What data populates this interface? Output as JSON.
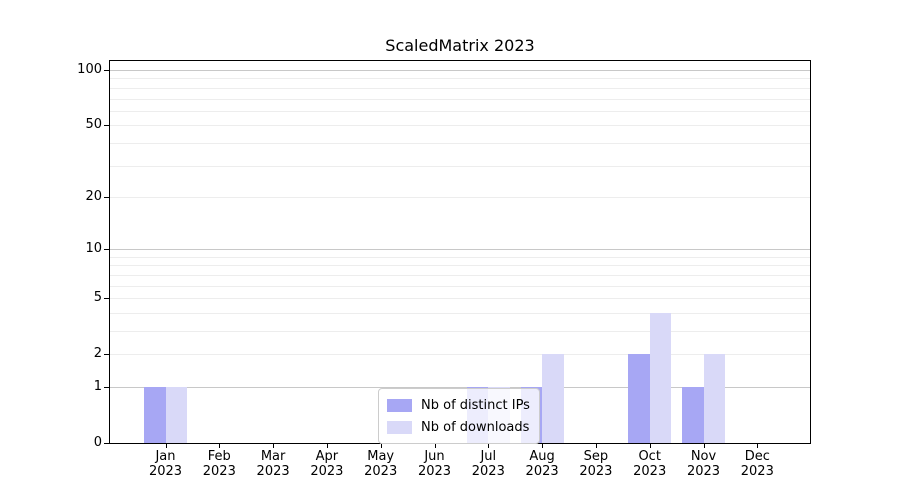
{
  "title": "ScaledMatrix 2023",
  "chart_data": {
    "type": "bar",
    "title": "ScaledMatrix 2023",
    "categories": [
      {
        "month": "Jan",
        "year": "2023"
      },
      {
        "month": "Feb",
        "year": "2023"
      },
      {
        "month": "Mar",
        "year": "2023"
      },
      {
        "month": "Apr",
        "year": "2023"
      },
      {
        "month": "May",
        "year": "2023"
      },
      {
        "month": "Jun",
        "year": "2023"
      },
      {
        "month": "Jul",
        "year": "2023"
      },
      {
        "month": "Aug",
        "year": "2023"
      },
      {
        "month": "Sep",
        "year": "2023"
      },
      {
        "month": "Oct",
        "year": "2023"
      },
      {
        "month": "Nov",
        "year": "2023"
      },
      {
        "month": "Dec",
        "year": "2023"
      }
    ],
    "series": [
      {
        "name": "Nb of distinct IPs",
        "color": "#a7a7f4",
        "values": [
          1,
          0,
          0,
          0,
          0,
          0,
          1,
          1,
          0,
          2,
          1,
          0
        ]
      },
      {
        "name": "Nb of downloads",
        "color": "#d9d9f8",
        "values": [
          1,
          0,
          0,
          0,
          0,
          0,
          1,
          2,
          0,
          4,
          2,
          0
        ]
      }
    ],
    "xlabel": "",
    "ylabel": "",
    "yscale": "log1p",
    "yticks": [
      0,
      1,
      2,
      5,
      10,
      20,
      50,
      100
    ],
    "ylim": [
      0,
      112
    ],
    "grid": {
      "major": [
        1,
        10,
        100
      ],
      "minor": [
        2,
        3,
        4,
        5,
        6,
        7,
        8,
        9,
        20,
        30,
        40,
        50,
        60,
        70,
        80,
        90
      ],
      "major_color": "#c8c8c8",
      "minor_color": "#ededed"
    },
    "legend_position": "lower-center"
  },
  "colors": {
    "background": "#ffffff",
    "axis": "#000000",
    "text": "#000000"
  }
}
